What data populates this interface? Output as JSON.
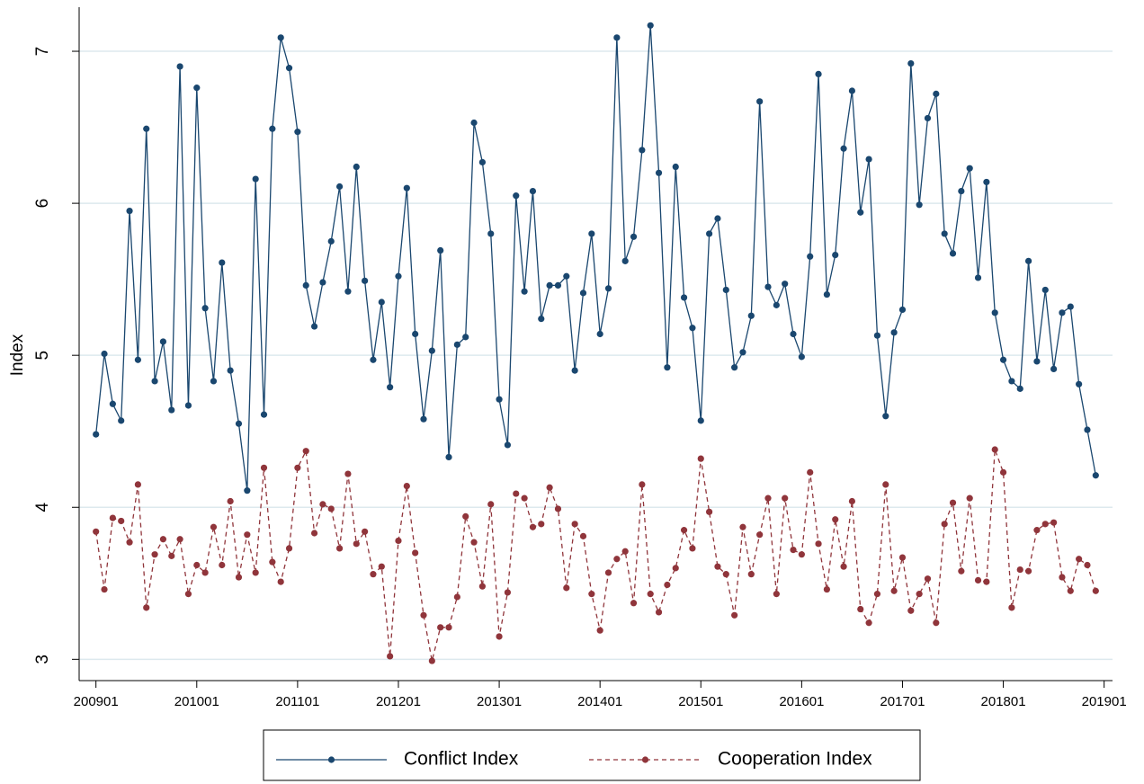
{
  "chart_data": {
    "type": "line",
    "ylabel": "Index",
    "x": [
      "200901",
      "200902",
      "200903",
      "200904",
      "200905",
      "200906",
      "200907",
      "200908",
      "200909",
      "200910",
      "200911",
      "200912",
      "201001",
      "201002",
      "201003",
      "201004",
      "201005",
      "201006",
      "201007",
      "201008",
      "201009",
      "201010",
      "201011",
      "201012",
      "201101",
      "201102",
      "201103",
      "201104",
      "201105",
      "201106",
      "201107",
      "201108",
      "201109",
      "201110",
      "201111",
      "201112",
      "201201",
      "201202",
      "201203",
      "201204",
      "201205",
      "201206",
      "201207",
      "201208",
      "201209",
      "201210",
      "201211",
      "201212",
      "201301",
      "201302",
      "201303",
      "201304",
      "201305",
      "201306",
      "201307",
      "201308",
      "201309",
      "201310",
      "201311",
      "201312",
      "201401",
      "201402",
      "201403",
      "201404",
      "201405",
      "201406",
      "201407",
      "201408",
      "201409",
      "201410",
      "201411",
      "201412",
      "201501",
      "201502",
      "201503",
      "201504",
      "201505",
      "201506",
      "201507",
      "201508",
      "201509",
      "201510",
      "201511",
      "201512",
      "201601",
      "201602",
      "201603",
      "201604",
      "201605",
      "201606",
      "201607",
      "201608",
      "201609",
      "201610",
      "201611",
      "201612",
      "201701",
      "201702",
      "201703",
      "201704",
      "201705",
      "201706",
      "201707",
      "201708",
      "201709",
      "201710",
      "201711",
      "201712",
      "201801",
      "201802",
      "201803",
      "201804",
      "201805",
      "201806",
      "201807",
      "201808",
      "201809",
      "201810",
      "201811",
      "201812"
    ],
    "xlim": [
      "200811",
      "201902"
    ],
    "xticks": [
      "200901",
      "201001",
      "201101",
      "201201",
      "201301",
      "201401",
      "201501",
      "201601",
      "201701",
      "201801",
      "201901"
    ],
    "ylim": [
      2.86,
      7.29
    ],
    "yticks": [
      3,
      4,
      5,
      6,
      7
    ],
    "grid": true,
    "legend_position": "bottom",
    "series": [
      {
        "name": "Conflict Index",
        "color": "#1a476f",
        "style": "solid",
        "values": [
          4.48,
          5.01,
          4.68,
          4.57,
          5.95,
          4.97,
          6.49,
          4.83,
          5.09,
          4.64,
          6.9,
          4.67,
          6.76,
          5.31,
          4.83,
          5.61,
          4.9,
          4.55,
          4.11,
          6.16,
          4.61,
          6.49,
          7.09,
          6.89,
          6.47,
          5.46,
          5.19,
          5.48,
          5.75,
          6.11,
          5.42,
          6.24,
          5.49,
          4.97,
          5.35,
          4.79,
          5.52,
          6.1,
          5.14,
          4.58,
          5.03,
          5.69,
          4.33,
          5.07,
          5.12,
          6.53,
          6.27,
          5.8,
          4.71,
          4.41,
          6.05,
          5.42,
          6.08,
          5.24,
          5.46,
          5.46,
          5.52,
          4.9,
          5.41,
          5.8,
          5.14,
          5.44,
          7.09,
          5.62,
          5.78,
          6.35,
          7.17,
          6.2,
          4.92,
          6.24,
          5.38,
          5.18,
          4.57,
          5.8,
          5.9,
          5.43,
          4.92,
          5.02,
          5.26,
          6.67,
          5.45,
          5.33,
          5.47,
          5.14,
          4.99,
          5.65,
          6.85,
          5.4,
          5.66,
          6.36,
          6.74,
          5.94,
          6.29,
          5.13,
          4.6,
          5.15,
          5.3,
          6.92,
          5.99,
          6.56,
          6.72,
          5.8,
          5.67,
          6.08,
          6.23,
          5.51,
          6.14,
          5.28,
          4.97,
          4.83,
          4.78,
          5.62,
          4.96,
          5.43,
          4.91,
          5.28,
          5.32,
          4.81,
          4.51,
          4.21
        ]
      },
      {
        "name": "Cooperation Index",
        "color": "#90353b",
        "style": "dashed",
        "values": [
          3.84,
          3.46,
          3.93,
          3.91,
          3.77,
          4.15,
          3.34,
          3.69,
          3.79,
          3.68,
          3.79,
          3.43,
          3.62,
          3.57,
          3.87,
          3.62,
          4.04,
          3.54,
          3.82,
          3.57,
          4.26,
          3.64,
          3.51,
          3.73,
          4.26,
          4.37,
          3.83,
          4.02,
          3.99,
          3.73,
          4.22,
          3.76,
          3.84,
          3.56,
          3.61,
          3.02,
          3.78,
          4.14,
          3.7,
          3.29,
          2.99,
          3.21,
          3.21,
          3.41,
          3.94,
          3.77,
          3.48,
          4.02,
          3.15,
          3.44,
          4.09,
          4.06,
          3.87,
          3.89,
          4.13,
          3.99,
          3.47,
          3.89,
          3.81,
          3.43,
          3.19,
          3.57,
          3.66,
          3.71,
          3.37,
          4.15,
          3.43,
          3.31,
          3.49,
          3.6,
          3.85,
          3.73,
          4.32,
          3.97,
          3.61,
          3.56,
          3.29,
          3.87,
          3.56,
          3.82,
          4.06,
          3.43,
          4.06,
          3.72,
          3.69,
          4.23,
          3.76,
          3.46,
          3.92,
          3.61,
          4.04,
          3.33,
          3.24,
          3.43,
          4.15,
          3.45,
          3.67,
          3.32,
          3.43,
          3.53,
          3.24,
          3.89,
          4.03,
          3.58,
          4.06,
          3.52,
          3.51,
          4.38,
          4.23,
          3.34,
          3.59,
          3.58,
          3.85,
          3.89,
          3.9,
          3.54,
          3.45,
          3.66,
          3.62,
          3.45
        ]
      }
    ]
  }
}
